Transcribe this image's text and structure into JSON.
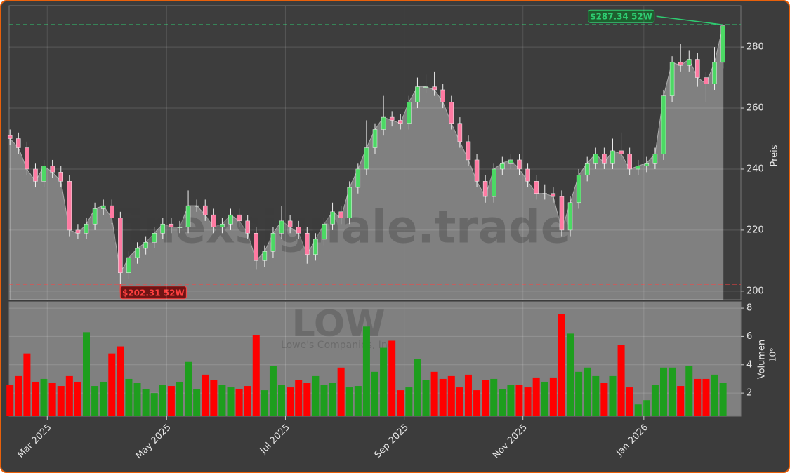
{
  "chart_data": [
    {
      "type": "candlestick",
      "watermark": "finexsignale.trade",
      "ticker": "LOW",
      "company": "Lowe's Companies, Inc.",
      "y_label": "Preis",
      "up_color": "#4cd964",
      "down_color": "#ff7aa2",
      "area_color": "#808080",
      "open": [
        251,
        250,
        247,
        240,
        236,
        241,
        239,
        236,
        220,
        219,
        222,
        227,
        228,
        224,
        206,
        211,
        214,
        216,
        219,
        222,
        221,
        221,
        228,
        228,
        225,
        221,
        222,
        225,
        223,
        219,
        210,
        213,
        219,
        223,
        221,
        219,
        212,
        217,
        222,
        226,
        224,
        234,
        240,
        247,
        253,
        257,
        256,
        255,
        262,
        267,
        267,
        266,
        262,
        255,
        249,
        243,
        236,
        231,
        240,
        242,
        243,
        240,
        236,
        232,
        232,
        231,
        220,
        229,
        238,
        242,
        245,
        242,
        246,
        245,
        240,
        241,
        242,
        245,
        264,
        275,
        274,
        276,
        270,
        268,
        275
      ],
      "high": [
        253,
        252,
        249,
        242,
        243,
        243,
        241,
        238,
        222,
        224,
        229,
        230,
        230,
        226,
        213,
        216,
        218,
        221,
        224,
        224,
        223,
        233,
        230,
        230,
        227,
        224,
        227,
        227,
        225,
        221,
        215,
        221,
        228,
        225,
        223,
        221,
        219,
        224,
        229,
        228,
        236,
        242,
        256,
        255,
        264,
        259,
        258,
        264,
        270,
        271,
        272,
        268,
        264,
        257,
        251,
        245,
        238,
        242,
        244,
        245,
        245,
        242,
        238,
        235,
        234,
        233,
        231,
        240,
        244,
        247,
        247,
        250,
        252,
        247,
        243,
        244,
        247,
        266,
        277,
        281,
        279,
        278,
        272,
        280,
        287.34
      ],
      "low": [
        248,
        245,
        238,
        234,
        234,
        237,
        234,
        218,
        217,
        217,
        220,
        225,
        222,
        202.31,
        204,
        209,
        212,
        214,
        217,
        219,
        219,
        219,
        226,
        223,
        219,
        219,
        220,
        221,
        217,
        207,
        208,
        211,
        217,
        219,
        217,
        209,
        210,
        215,
        220,
        222,
        222,
        232,
        238,
        245,
        251,
        254,
        253,
        253,
        260,
        265,
        264,
        260,
        253,
        247,
        241,
        234,
        229,
        229,
        238,
        240,
        238,
        234,
        230,
        230,
        229,
        218,
        218,
        227,
        236,
        240,
        240,
        240,
        243,
        238,
        238,
        239,
        240,
        243,
        262,
        272,
        272,
        267,
        262,
        266,
        273
      ],
      "close": [
        250,
        247,
        240,
        236,
        241,
        239,
        236,
        220,
        219,
        222,
        227,
        228,
        224,
        206,
        211,
        214,
        216,
        219,
        222,
        221,
        221,
        228,
        228,
        225,
        221,
        222,
        225,
        223,
        219,
        210,
        213,
        219,
        223,
        221,
        219,
        212,
        217,
        222,
        226,
        224,
        234,
        240,
        247,
        253,
        257,
        256,
        255,
        262,
        267,
        267,
        266,
        262,
        255,
        249,
        243,
        236,
        231,
        240,
        242,
        243,
        240,
        236,
        232,
        232,
        231,
        220,
        229,
        238,
        242,
        245,
        242,
        246,
        245,
        240,
        241,
        242,
        245,
        264,
        275,
        274,
        276,
        270,
        268,
        275,
        287
      ],
      "ylim": [
        197.2,
        293.6
      ],
      "yticks": [
        200,
        220,
        240,
        260,
        280
      ],
      "grid": true,
      "annotations": [
        {
          "text": "$287.34 52W",
          "value": 287.34,
          "color": "#2ecc71"
        },
        {
          "text": "$202.31 52W",
          "value": 202.31,
          "color": "#ff4040"
        }
      ]
    },
    {
      "type": "bar",
      "y_label": "Volumen",
      "y_scale_label": "10⁶",
      "up_color": "#1e9e1e",
      "down_color": "#ff0000",
      "values": [
        2.6,
        3.2,
        4.8,
        2.8,
        3.0,
        2.7,
        2.5,
        3.2,
        2.8,
        6.3,
        2.5,
        2.8,
        4.8,
        5.3,
        3.0,
        2.7,
        2.3,
        2.0,
        2.6,
        2.5,
        2.8,
        4.2,
        2.3,
        3.3,
        2.9,
        2.6,
        2.4,
        2.3,
        2.5,
        6.1,
        2.2,
        3.9,
        2.6,
        2.4,
        2.9,
        2.7,
        3.2,
        2.6,
        2.7,
        3.8,
        2.4,
        2.5,
        6.7,
        3.5,
        5.2,
        5.7,
        2.2,
        2.4,
        4.4,
        2.9,
        3.5,
        3.0,
        3.2,
        2.4,
        3.3,
        2.2,
        2.9,
        3.0,
        2.3,
        2.6,
        2.6,
        2.4,
        3.1,
        2.8,
        3.1,
        7.6,
        6.2,
        3.5,
        3.8,
        3.2,
        2.7,
        3.2,
        5.4,
        2.4,
        1.2,
        1.5,
        2.6,
        3.8,
        3.8,
        2.5,
        3.9,
        3.0,
        3.0,
        3.3,
        2.7
      ],
      "ylim": [
        0.37,
        8.45
      ],
      "yticks": [
        2,
        4,
        6,
        8
      ],
      "grid": true,
      "xlim": [
        -0.1,
        86.1
      ],
      "xticks": [
        {
          "value": 4.39,
          "label": "Mar 2025"
        },
        {
          "value": 18.46,
          "label": "May 2025"
        },
        {
          "value": 32.45,
          "label": "Jul 2025"
        },
        {
          "value": 46.44,
          "label": "Sep 2025"
        },
        {
          "value": 60.43,
          "label": "Nov 2025"
        },
        {
          "value": 74.67,
          "label": "Jan 2026"
        }
      ]
    }
  ]
}
